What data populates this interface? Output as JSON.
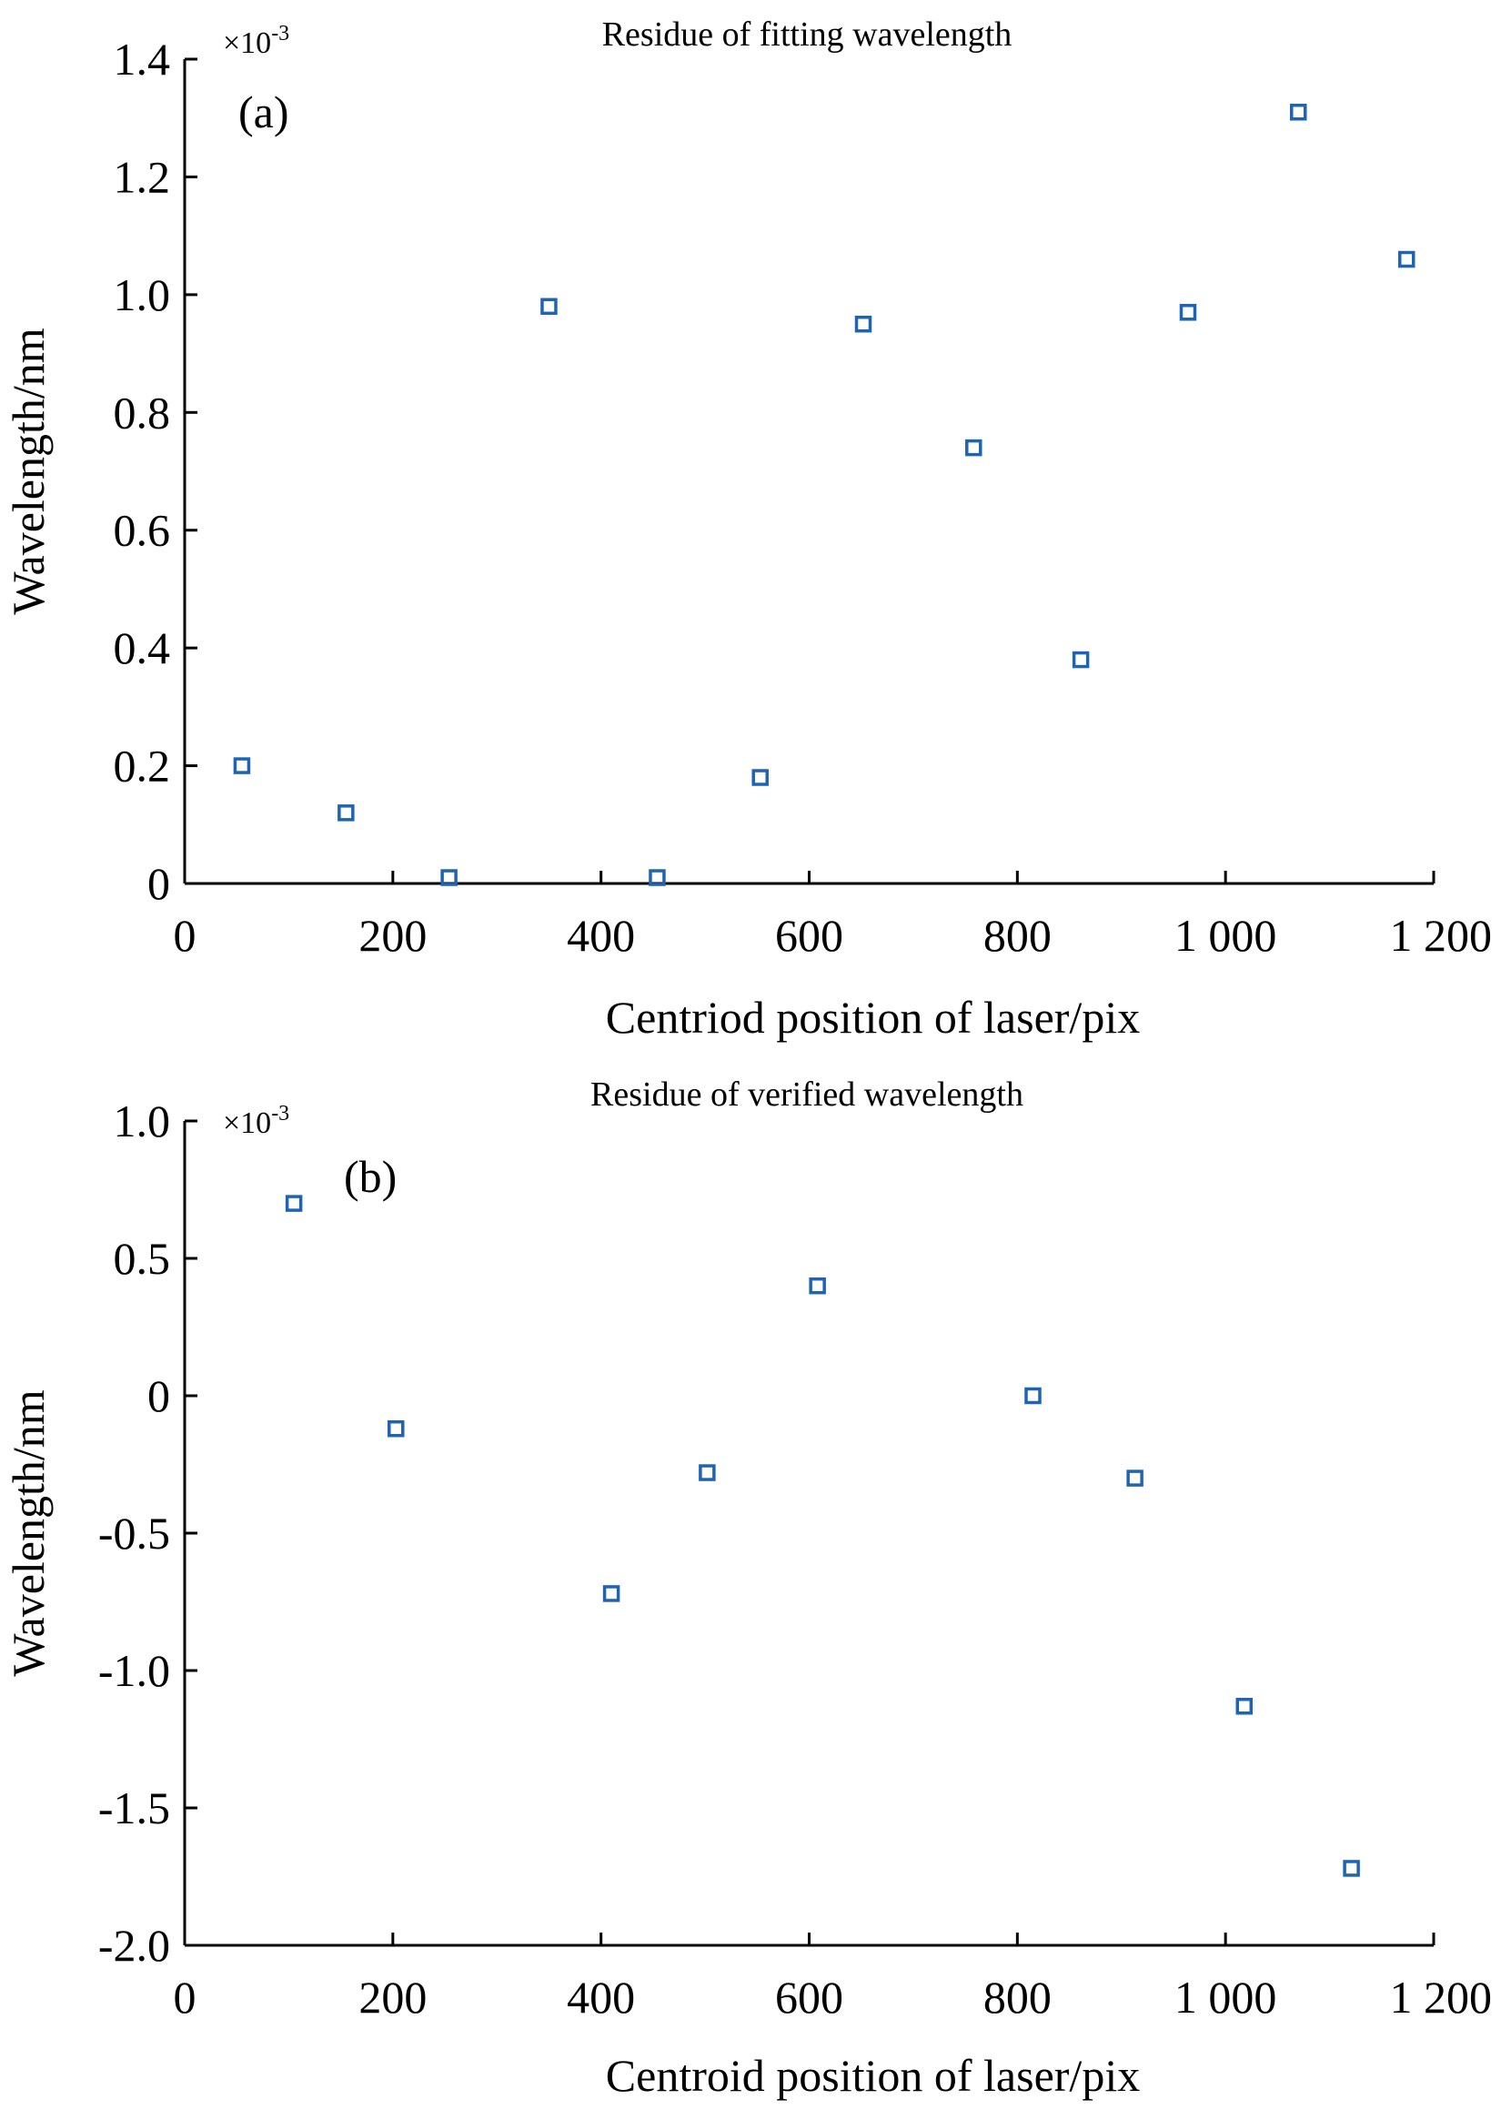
{
  "chart_data": [
    {
      "type": "scatter",
      "panel_label": "(a)",
      "title": "Residue of fitting wavelength",
      "xlabel": "Centriod position of laser/pix",
      "ylabel": "Wavelength/nm",
      "y_multiplier": "×10",
      "y_multiplier_exp": "-3",
      "xlim": [
        0,
        1200
      ],
      "ylim": [
        0,
        1.4
      ],
      "x_ticks": [
        0,
        200,
        400,
        600,
        800,
        1000,
        1200
      ],
      "x_tick_labels": [
        "0",
        "200",
        "400",
        "600",
        "800",
        "1 000",
        "1 200"
      ],
      "y_ticks": [
        0,
        0.2,
        0.4,
        0.6,
        0.8,
        1.0,
        1.2,
        1.4
      ],
      "y_tick_labels": [
        "0",
        "0.2",
        "0.4",
        "0.6",
        "0.8",
        "1.0",
        "1.2",
        "1.4"
      ],
      "grid": false,
      "marker": "open-square",
      "color": "#1f64b4",
      "x": [
        55,
        155,
        254,
        350,
        454,
        553,
        652,
        758,
        861,
        964,
        1070,
        1174
      ],
      "y": [
        0.2,
        0.12,
        0.01,
        0.98,
        0.01,
        0.18,
        0.95,
        0.74,
        0.38,
        0.97,
        1.31,
        1.06
      ]
    },
    {
      "type": "scatter",
      "panel_label": "(b)",
      "title": "Residue of verified wavelength",
      "xlabel": "Centroid position of laser/pix",
      "ylabel": "Wavelength/nm",
      "y_multiplier": "×10",
      "y_multiplier_exp": "-3",
      "xlim": [
        0,
        1200
      ],
      "ylim": [
        -2.0,
        1.0
      ],
      "x_ticks": [
        0,
        200,
        400,
        600,
        800,
        1000,
        1200
      ],
      "x_tick_labels": [
        "0",
        "200",
        "400",
        "600",
        "800",
        "1 000",
        "1 200"
      ],
      "y_ticks": [
        -2.0,
        -1.5,
        -1.0,
        -0.5,
        0,
        0.5,
        1.0
      ],
      "y_tick_labels": [
        "-2.0",
        "-1.5",
        "-1.0",
        "-0.5",
        "0",
        "0.5",
        "1.0"
      ],
      "grid": false,
      "marker": "open-square",
      "color": "#1f64b4",
      "x": [
        105,
        203,
        410,
        502,
        608,
        815,
        913,
        1018,
        1121
      ],
      "y": [
        0.7,
        -0.12,
        -0.72,
        -0.28,
        0.4,
        0.0,
        -0.3,
        -1.13,
        -1.72
      ]
    }
  ]
}
